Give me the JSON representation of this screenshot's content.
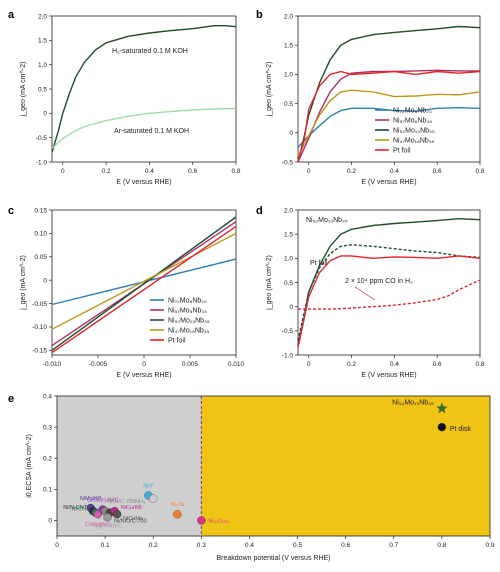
{
  "panel_labels": [
    "a",
    "b",
    "c",
    "d",
    "e"
  ],
  "chart_data": [
    {
      "panel": "a",
      "type": "line",
      "xlabel": "E (V versus RHE)",
      "ylabel": "j_geo (mA cm^-2)",
      "xlim": [
        -0.05,
        0.8
      ],
      "ylim": [
        -1.0,
        2.0
      ],
      "xticks": [
        "0",
        "0.2",
        "0.4",
        "0.6",
        "0.8"
      ],
      "yticks": [
        "-1.0",
        "-0.5",
        "0",
        "0.5",
        "1.0",
        "1.5",
        "2.0"
      ],
      "annotations": [
        "H₂-saturated 0.1 M KOH",
        "Ar-saturated 0.1 M KOH"
      ],
      "series": [
        {
          "color": "#1f4d2b",
          "x": [
            -0.05,
            -0.02,
            0.0,
            0.03,
            0.06,
            0.1,
            0.15,
            0.2,
            0.3,
            0.4,
            0.5,
            0.6,
            0.7,
            0.75,
            0.8
          ],
          "y": [
            -0.8,
            -0.35,
            0.0,
            0.4,
            0.75,
            1.05,
            1.3,
            1.45,
            1.58,
            1.65,
            1.7,
            1.74,
            1.8,
            1.8,
            1.78
          ]
        },
        {
          "color": "#9fdcb0",
          "x": [
            -0.05,
            0.0,
            0.05,
            0.1,
            0.2,
            0.3,
            0.4,
            0.5,
            0.6,
            0.7,
            0.8
          ],
          "y": [
            -0.72,
            -0.52,
            -0.38,
            -0.27,
            -0.15,
            -0.06,
            0.0,
            0.04,
            0.07,
            0.09,
            0.1
          ]
        }
      ]
    },
    {
      "panel": "b",
      "type": "line",
      "xlabel": "E (V versus RHE)",
      "ylabel": "j_geo (mA cm^-2)",
      "xlim": [
        -0.05,
        0.8
      ],
      "ylim": [
        -0.5,
        2.0
      ],
      "xticks": [
        "0",
        "0.2",
        "0.4",
        "0.6",
        "0.8"
      ],
      "yticks": [
        "-0.5",
        "0",
        "0.5",
        "1.0",
        "1.5",
        "2.0"
      ],
      "legend": [
        "Ni₇₂Mo₈Nb₂₀",
        "Ni₅₇Mo₈Nb₃₅",
        "Ni₅₂Mo₁₃Nb₃₅",
        "Ni₄₇Mo₁₈Nb₃₅",
        "Pt foil"
      ],
      "series": [
        {
          "name": "Ni₇₂Mo₈Nb₂₀",
          "color": "#2f7fb3",
          "x": [
            -0.05,
            0.0,
            0.05,
            0.1,
            0.15,
            0.2,
            0.3,
            0.4,
            0.5,
            0.6,
            0.7,
            0.8
          ],
          "y": [
            -0.25,
            -0.05,
            0.12,
            0.28,
            0.38,
            0.42,
            0.42,
            0.38,
            0.37,
            0.42,
            0.43,
            0.42
          ]
        },
        {
          "name": "Ni₅₇Mo₈Nb₃₅",
          "color": "#b0306a",
          "x": [
            -0.05,
            0.0,
            0.05,
            0.1,
            0.15,
            0.2,
            0.3,
            0.4,
            0.5,
            0.6,
            0.7,
            0.8
          ],
          "y": [
            -0.5,
            -0.1,
            0.35,
            0.7,
            0.92,
            1.02,
            1.05,
            1.05,
            1.06,
            1.07,
            1.06,
            1.06
          ]
        },
        {
          "name": "Ni₅₂Mo₁₃Nb₃₅",
          "color": "#1f4d2b",
          "x": [
            -0.05,
            -0.02,
            0.0,
            0.05,
            0.1,
            0.15,
            0.2,
            0.3,
            0.4,
            0.5,
            0.6,
            0.7,
            0.8
          ],
          "y": [
            -0.5,
            -0.05,
            0.3,
            0.85,
            1.25,
            1.5,
            1.6,
            1.68,
            1.72,
            1.75,
            1.78,
            1.82,
            1.8
          ]
        },
        {
          "name": "Ni₄₇Mo₁₈Nb₃₅",
          "color": "#b99a1f",
          "x": [
            -0.05,
            0.0,
            0.05,
            0.1,
            0.15,
            0.2,
            0.3,
            0.4,
            0.5,
            0.6,
            0.7,
            0.8
          ],
          "y": [
            -0.4,
            -0.05,
            0.3,
            0.55,
            0.7,
            0.73,
            0.7,
            0.62,
            0.63,
            0.66,
            0.65,
            0.7
          ]
        },
        {
          "name": "Pt foil",
          "color": "#e3262b",
          "x": [
            -0.05,
            -0.02,
            0.0,
            0.05,
            0.1,
            0.15,
            0.2,
            0.3,
            0.4,
            0.5,
            0.6,
            0.7,
            0.8
          ],
          "y": [
            -0.5,
            -0.1,
            0.4,
            0.8,
            1.0,
            1.05,
            1.0,
            1.02,
            1.05,
            1.0,
            1.05,
            1.02,
            1.05
          ]
        }
      ]
    },
    {
      "panel": "c",
      "type": "line",
      "xlabel": "E (V versus RHE)",
      "ylabel": "j_geo (mA cm^-2)",
      "xlim": [
        -0.01,
        0.01
      ],
      "ylim": [
        -0.16,
        0.15
      ],
      "xticks": [
        "-0.010",
        "-0.005",
        "0",
        "0.005",
        "0.010"
      ],
      "yticks": [
        "-0.15",
        "-0.10",
        "-0.05",
        "0",
        "0.05",
        "0.10",
        "0.15"
      ],
      "legend": [
        "Ni₇₂Mo₈Nb₂₀",
        "Ni₅₇Mo₈Nb₃₅",
        "Ni₅₂Mo₁₃Nb₃₅",
        "Ni₄₇Mo₁₈Nb₃₅",
        "Pt foil"
      ],
      "series": [
        {
          "name": "Ni₇₂Mo₈Nb₂₀",
          "color": "#2f7fb3",
          "x": [
            -0.01,
            0.01
          ],
          "y": [
            -0.052,
            0.045
          ]
        },
        {
          "name": "Ni₅₇Mo₈Nb₃₅",
          "color": "#b0306a",
          "x": [
            -0.01,
            0.01
          ],
          "y": [
            -0.14,
            0.125
          ]
        },
        {
          "name": "Ni₅₂Mo₁₃Nb₃₅",
          "color": "#1f4d2b",
          "x": [
            -0.01,
            0.01
          ],
          "y": [
            -0.15,
            0.135
          ]
        },
        {
          "name": "Ni₄₇Mo₁₈Nb₃₅",
          "color": "#b99a1f",
          "x": [
            -0.01,
            0.01
          ],
          "y": [
            -0.105,
            0.1
          ]
        },
        {
          "name": "Pt foil",
          "color": "#e3262b",
          "x": [
            -0.01,
            0.01
          ],
          "y": [
            -0.155,
            0.115
          ]
        }
      ]
    },
    {
      "panel": "d",
      "type": "line",
      "xlabel": "E (V versus RHE)",
      "ylabel": "j_geo (mA cm^-2)",
      "xlim": [
        -0.05,
        0.8
      ],
      "ylim": [
        -1.0,
        2.0
      ],
      "xticks": [
        "0",
        "0.2",
        "0.4",
        "0.6",
        "0.8"
      ],
      "yticks": [
        "-1.0",
        "-0.5",
        "0",
        "0.5",
        "1.0",
        "1.5",
        "2.0"
      ],
      "annotations": [
        "Ni₅₂Mo₁₃Nb₃₅",
        "Pt foil",
        "2 × 10⁴ ppm CO in H₂"
      ],
      "series": [
        {
          "color": "#1f4d2b",
          "dash": false,
          "x": [
            -0.05,
            -0.02,
            0.0,
            0.05,
            0.1,
            0.15,
            0.2,
            0.3,
            0.4,
            0.5,
            0.6,
            0.7,
            0.8
          ],
          "y": [
            -0.8,
            -0.2,
            0.3,
            0.85,
            1.25,
            1.5,
            1.6,
            1.68,
            1.72,
            1.75,
            1.78,
            1.82,
            1.8
          ]
        },
        {
          "color": "#1f4d2b",
          "dash": true,
          "x": [
            -0.05,
            0.0,
            0.05,
            0.1,
            0.15,
            0.2,
            0.3,
            0.4,
            0.5,
            0.6,
            0.7,
            0.8
          ],
          "y": [
            -0.7,
            0.3,
            0.8,
            1.1,
            1.25,
            1.28,
            1.25,
            1.2,
            1.15,
            1.12,
            1.05,
            1.02
          ]
        },
        {
          "color": "#e3262b",
          "dash": false,
          "x": [
            -0.05,
            0.0,
            0.05,
            0.1,
            0.15,
            0.2,
            0.3,
            0.4,
            0.5,
            0.6,
            0.7,
            0.8
          ],
          "y": [
            -0.85,
            0.2,
            0.7,
            0.95,
            1.05,
            1.05,
            1.0,
            1.03,
            1.02,
            1.0,
            1.05,
            1.0
          ]
        },
        {
          "color": "#e3262b",
          "dash": true,
          "x": [
            -0.05,
            0.0,
            0.1,
            0.2,
            0.3,
            0.4,
            0.5,
            0.6,
            0.65,
            0.7,
            0.75,
            0.8
          ],
          "y": [
            -0.05,
            -0.05,
            -0.05,
            -0.03,
            0.0,
            0.03,
            0.08,
            0.15,
            0.22,
            0.35,
            0.45,
            0.55
          ]
        }
      ]
    },
    {
      "panel": "e",
      "type": "scatter",
      "xlabel": "Breakdown potential (V versus RHE)",
      "ylabel": "i0,ECSA (mA cm^-2)",
      "xlim": [
        0,
        0.9
      ],
      "ylim": [
        -0.05,
        0.4
      ],
      "xticks": [
        "0",
        "0.1",
        "0.2",
        "0.3",
        "0.4",
        "0.5",
        "0.6",
        "0.7",
        "0.8",
        "0.9"
      ],
      "yticks": [
        "0",
        "0.1",
        "0.2",
        "0.3",
        "0.4"
      ],
      "threshold_x": 0.3,
      "region_colors": [
        "#cfcfcf",
        "#f0c414"
      ],
      "points": [
        {
          "label": "Ni₅₂Mo₁₃Nb₃₅",
          "x": 0.8,
          "y": 0.36,
          "marker": "star",
          "color": "#2f6b2f"
        },
        {
          "label": "Pt disk",
          "x": 0.8,
          "y": 0.3,
          "marker": "circle",
          "color": "#111111"
        },
        {
          "label": "NiMo/KB",
          "x": 0.07,
          "y": 0.04,
          "marker": "circle",
          "color": "#5b3a9e"
        },
        {
          "label": "Ni/N-CNT",
          "x": 0.075,
          "y": 0.03,
          "marker": "circle",
          "color": "#333333"
        },
        {
          "label": "Ni/CNT",
          "x": 0.08,
          "y": 0.025,
          "marker": "circle",
          "color": "#2a7a5a"
        },
        {
          "label": "CoNi@NC",
          "x": 0.085,
          "y": 0.02,
          "marker": "circle",
          "color": "#d65aa8"
        },
        {
          "label": "CeO₂(r)-Ni/C",
          "x": 0.095,
          "y": 0.035,
          "marker": "circle",
          "color": "#8a3fb0"
        },
        {
          "label": "Ni₃N/C-700NH₃",
          "x": 0.1,
          "y": 0.03,
          "marker": "circle",
          "color": "#888888"
        },
        {
          "label": "Ni/NiO/C-700",
          "x": 0.11,
          "y": 0.025,
          "marker": "circle",
          "color": "#444444"
        },
        {
          "label": "Ni@h-BN/C",
          "x": 0.105,
          "y": 0.01,
          "marker": "circle",
          "color": "#999999"
        },
        {
          "label": "NiCu/KB",
          "x": 0.12,
          "y": 0.03,
          "marker": "circle",
          "color": "#c0288c"
        },
        {
          "label": "NiCoMo",
          "x": 0.125,
          "y": 0.02,
          "marker": "circle",
          "color": "#555555"
        },
        {
          "label": "Ni/Y",
          "x": 0.19,
          "y": 0.08,
          "marker": "circle",
          "color": "#3bb0e0"
        },
        {
          "label": "Ni₃Mo",
          "x": 0.2,
          "y": 0.07,
          "marker": "circle",
          "color": "#cccccc"
        },
        {
          "label": "Ni₃Ta",
          "x": 0.25,
          "y": 0.02,
          "marker": "circle",
          "color": "#f08030"
        },
        {
          "label": "Ni₅₀Cu₄₅",
          "x": 0.3,
          "y": 0.0,
          "marker": "circle",
          "color": "#e0308c"
        }
      ]
    }
  ]
}
